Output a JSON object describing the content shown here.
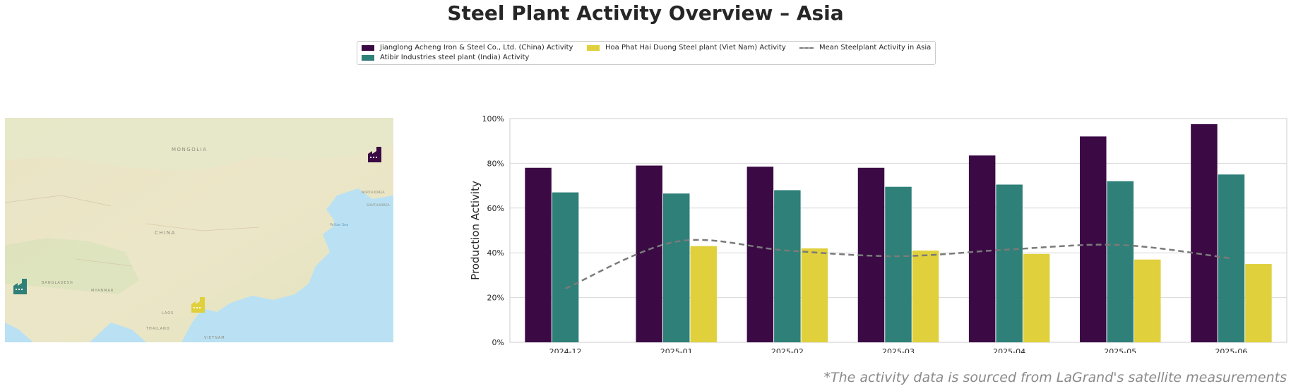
{
  "title": "Steel Plant Activity Overview – Asia",
  "source_note": "*The activity data is sourced from LaGrand's satellite measurements",
  "legend": {
    "items": [
      {
        "label": "Jianglong Acheng Iron & Steel Co., Ltd. (China) Activity",
        "color": "#3b0a45"
      },
      {
        "label": "Atibir Industries steel plant (India) Activity",
        "color": "#2e8078"
      },
      {
        "label": "Hoa Phat Hai Duong Steel plant (Viet Nam) Activity",
        "color": "#e0d03c"
      },
      {
        "label": "Mean Steelplant Activity in Asia",
        "color": "#7a7a7a"
      }
    ]
  },
  "map": {
    "labels": [
      "MONGOLIA",
      "CHINA",
      "BANGLADESH",
      "MYANMAR",
      "THAILAND",
      "LAOS",
      "VIETNAM",
      "Yellow Sea",
      "NORTH KOREA",
      "SOUTH KOREA"
    ],
    "markers": [
      {
        "plant": "china",
        "color": "#3b0a45",
        "icon": "factory-icon"
      },
      {
        "plant": "india",
        "color": "#2e8078",
        "icon": "factory-icon"
      },
      {
        "plant": "vietnam",
        "color": "#e0d03c",
        "icon": "factory-icon"
      }
    ]
  },
  "chart_data": {
    "type": "bar",
    "categories": [
      "2024-12",
      "2025-01",
      "2025-02",
      "2025-03",
      "2025-04",
      "2025-05",
      "2025-06"
    ],
    "series": [
      {
        "name": "Jianglong Acheng Iron & Steel Co., Ltd. (China) Activity",
        "color": "#3b0a45",
        "values": [
          78,
          79,
          78.5,
          78,
          83.5,
          92,
          97.5
        ]
      },
      {
        "name": "Atibir Industries steel plant (India) Activity",
        "color": "#2e8078",
        "values": [
          67,
          66.5,
          68,
          69.5,
          70.5,
          72,
          75
        ]
      },
      {
        "name": "Hoa Phat Hai Duong Steel plant (Viet Nam) Activity",
        "color": "#e0d03c",
        "values": [
          null,
          43,
          42,
          41,
          39.5,
          37,
          35
        ]
      }
    ],
    "line_series": {
      "name": "Mean Steelplant Activity in Asia",
      "color": "#7a7a7a",
      "values": [
        24,
        45,
        41,
        38.5,
        41.5,
        43.5,
        37.5
      ]
    },
    "ylabel": "Production Activity",
    "xlabel": "",
    "ylim": [
      0,
      100
    ],
    "yticks": [
      "0%",
      "20%",
      "40%",
      "60%",
      "80%",
      "100%"
    ],
    "grid": true
  }
}
